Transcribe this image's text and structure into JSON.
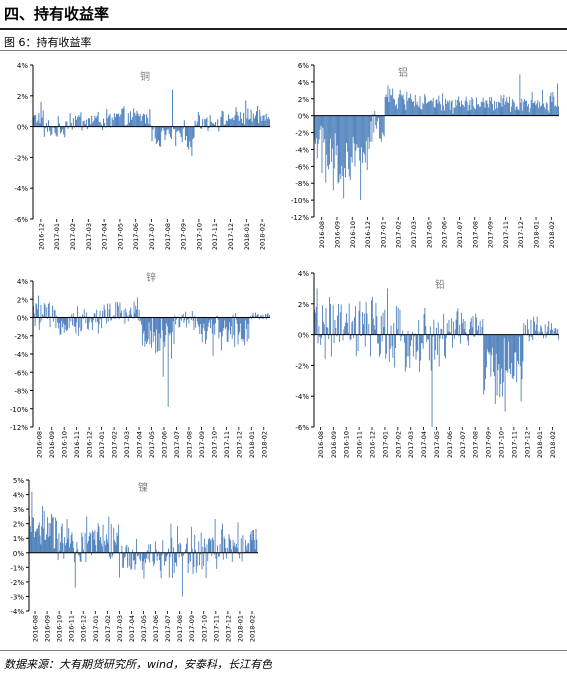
{
  "heading": "四、持有收益率",
  "figure_caption": "图 6：持有收益率",
  "source": "数据来源：大有期货研究所，wind，安泰科，长江有色",
  "colors": {
    "bar": "#4f81bd",
    "axis": "#000000",
    "title_text": "#808080",
    "rule": "#1f1f1f"
  },
  "chart_data": [
    {
      "type": "bar",
      "title": "铜",
      "yticks": [
        "4%",
        "2%",
        "0%",
        "-2%",
        "-4%",
        "-6%"
      ],
      "ylim": [
        -6,
        4
      ],
      "categories": [
        "2016-12",
        "2017-01",
        "2017-02",
        "2017-03",
        "2017-04",
        "2017-05",
        "2017-06",
        "2017-07",
        "2017-08",
        "2017-09",
        "2017-10",
        "2017-11",
        "2017-12",
        "2018-01",
        "2018-02"
      ],
      "segments": [
        {
          "n": 10,
          "mean": 0.6,
          "amp": 0.4
        },
        {
          "n": 20,
          "mean": -0.2,
          "amp": 0.6
        },
        {
          "n": 45,
          "mean": 0.4,
          "amp": 0.6
        },
        {
          "n": 35,
          "mean": 0.6,
          "amp": 0.5
        },
        {
          "n": 40,
          "mean": -0.6,
          "amp": 0.7
        },
        {
          "n": 30,
          "mean": 0.4,
          "amp": 0.5
        },
        {
          "n": 40,
          "mean": 0.6,
          "amp": 0.5
        }
      ],
      "extremes": [
        {
          "pos": 0.03,
          "v": 1.6
        },
        {
          "pos": 0.59,
          "v": 2.4
        },
        {
          "pos": 0.67,
          "v": -1.9
        },
        {
          "pos": 0.9,
          "v": 1.7
        }
      ]
    },
    {
      "type": "bar",
      "title": "铝",
      "yticks": [
        "6%",
        "4%",
        "2%",
        "0%",
        "-2%",
        "-4%",
        "-6%",
        "-8%",
        "-10%",
        "-12%"
      ],
      "ylim": [
        -12,
        6
      ],
      "categories": [
        "2016-08",
        "2016-09",
        "2016-10",
        "2016-12",
        "2017-01",
        "2017-02",
        "2017-03",
        "2017-05",
        "2017-06",
        "2017-07",
        "2017-08",
        "2017-09",
        "2017-11",
        "2017-12",
        "2018-01",
        "2018-02"
      ],
      "segments": [
        {
          "n": 12,
          "mean": -3,
          "amp": 1.5
        },
        {
          "n": 28,
          "mean": -6,
          "amp": 3
        },
        {
          "n": 20,
          "mean": -4.5,
          "amp": 2.5
        },
        {
          "n": 15,
          "mean": -1.5,
          "amp": 1.5
        },
        {
          "n": 35,
          "mean": 2,
          "amp": 1
        },
        {
          "n": 110,
          "mean": 1.4,
          "amp": 0.9
        },
        {
          "n": 40,
          "mean": 1.6,
          "amp": 1
        }
      ],
      "extremes": [
        {
          "pos": 0.03,
          "v": -6.8
        },
        {
          "pos": 0.12,
          "v": -9.8
        },
        {
          "pos": 0.19,
          "v": -10
        },
        {
          "pos": 0.3,
          "v": 3.6
        },
        {
          "pos": 0.84,
          "v": 4.9
        },
        {
          "pos": 0.995,
          "v": 3.8
        }
      ]
    },
    {
      "type": "bar",
      "title": "锌",
      "yticks": [
        "4%",
        "2%",
        "0%",
        "-2%",
        "-4%",
        "-6%",
        "-8%",
        "-10%",
        "-12%"
      ],
      "ylim": [
        -12,
        4
      ],
      "categories": [
        "2016-08",
        "2016-09",
        "2016-10",
        "2016-11",
        "2016-12",
        "2017-01",
        "2017-02",
        "2017-03",
        "2017-04",
        "2017-05",
        "2017-06",
        "2017-07",
        "2017-08",
        "2017-09",
        "2017-10",
        "2017-11",
        "2017-12",
        "2018-01",
        "2018-02"
      ],
      "segments": [
        {
          "n": 20,
          "mean": 0.2,
          "amp": 1.2
        },
        {
          "n": 60,
          "mean": -0.4,
          "amp": 1.2
        },
        {
          "n": 50,
          "mean": 0.4,
          "amp": 1.2
        },
        {
          "n": 40,
          "mean": -2,
          "amp": 2
        },
        {
          "n": 30,
          "mean": -0.3,
          "amp": 0.8
        },
        {
          "n": 60,
          "mean": -1.5,
          "amp": 1.5
        },
        {
          "n": 25,
          "mean": 0.2,
          "amp": 0.4
        }
      ],
      "extremes": [
        {
          "pos": 0.02,
          "v": 2.4
        },
        {
          "pos": 0.44,
          "v": 2.2
        },
        {
          "pos": 0.57,
          "v": -9.8
        },
        {
          "pos": 0.55,
          "v": -6.5
        },
        {
          "pos": 0.76,
          "v": -4.2
        }
      ]
    },
    {
      "type": "bar",
      "title": "铅",
      "yticks": [
        "4%",
        "2%",
        "0%",
        "-2%",
        "-4%",
        "-6%"
      ],
      "ylim": [
        -6,
        4
      ],
      "categories": [
        "2016-08",
        "2016-09",
        "2016-10",
        "2016-11",
        "2016-12",
        "2017-01",
        "2017-02",
        "2017-03",
        "2017-04",
        "2017-05",
        "2017-06",
        "2017-07",
        "2017-08",
        "2017-09",
        "2017-10",
        "2017-11",
        "2017-12",
        "2018-01",
        "2018-02"
      ],
      "segments": [
        {
          "n": 20,
          "mean": 0.5,
          "amp": 1.5
        },
        {
          "n": 60,
          "mean": 0.3,
          "amp": 1.6
        },
        {
          "n": 70,
          "mean": -0.5,
          "amp": 1.7
        },
        {
          "n": 40,
          "mean": 0.4,
          "amp": 1.2
        },
        {
          "n": 45,
          "mean": -2.2,
          "amp": 1.6
        },
        {
          "n": 40,
          "mean": 0.4,
          "amp": 0.7
        }
      ],
      "extremes": [
        {
          "pos": 0.01,
          "v": 3
        },
        {
          "pos": 0.3,
          "v": 3
        },
        {
          "pos": 0.48,
          "v": -6
        },
        {
          "pos": 0.78,
          "v": -5
        },
        {
          "pos": 0.74,
          "v": -4.5
        }
      ]
    },
    {
      "type": "bar",
      "title": "镍",
      "yticks": [
        "5%",
        "4%",
        "3%",
        "2%",
        "1%",
        "0%",
        "-1%",
        "-2%",
        "-3%",
        "-4%"
      ],
      "ylim": [
        -4,
        5
      ],
      "categories": [
        "2016-08",
        "2016-09",
        "2016-10",
        "2016-11",
        "2016-12",
        "2017-01",
        "2017-02",
        "2017-03",
        "2017-04",
        "2017-05",
        "2017-06",
        "2017-07",
        "2017-08",
        "2017-09",
        "2017-10",
        "2017-11",
        "2017-12",
        "2018-01",
        "2018-02"
      ],
      "segments": [
        {
          "n": 30,
          "mean": 1.8,
          "amp": 1.2
        },
        {
          "n": 40,
          "mean": 0.6,
          "amp": 1.3
        },
        {
          "n": 40,
          "mean": 1,
          "amp": 1.2
        },
        {
          "n": 60,
          "mean": -0.4,
          "amp": 1
        },
        {
          "n": 60,
          "mean": 0.3,
          "amp": 1.6
        },
        {
          "n": 50,
          "mean": 0.7,
          "amp": 1
        }
      ],
      "extremes": [
        {
          "pos": 0.01,
          "v": 4.2
        },
        {
          "pos": 0.2,
          "v": -2.4
        },
        {
          "pos": 0.67,
          "v": -3
        },
        {
          "pos": 0.62,
          "v": 2
        }
      ]
    }
  ]
}
